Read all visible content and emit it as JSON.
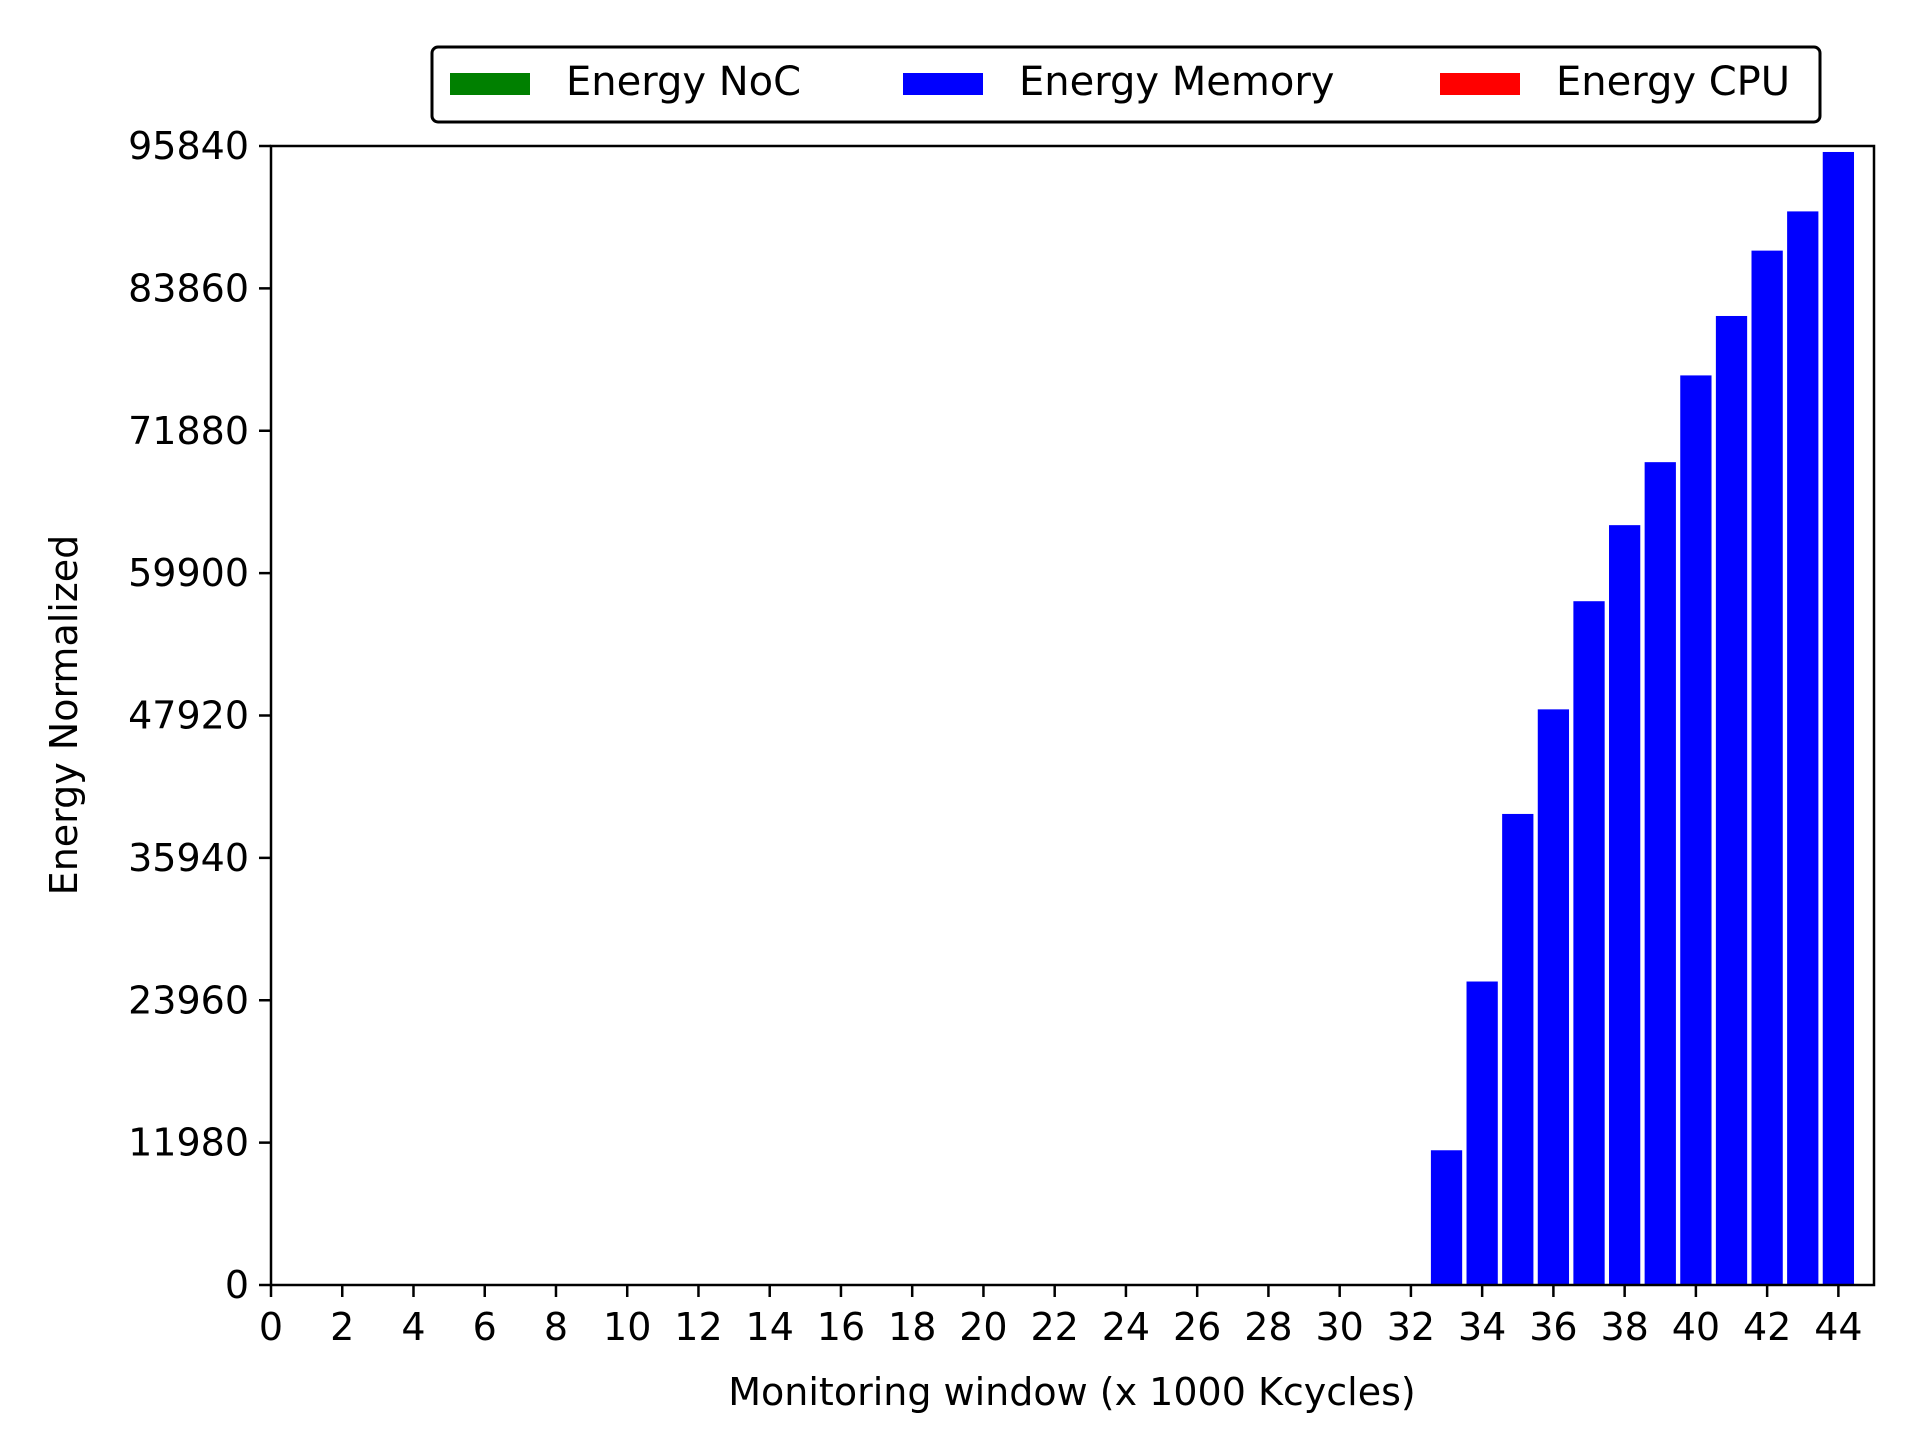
{
  "colors": {
    "noc": "#008000",
    "memory": "#0000ff",
    "cpu": "#ff0000",
    "axis": "#000000",
    "bar_edge": "#ffffff"
  },
  "legend": {
    "items": [
      {
        "label": "Energy NoC",
        "color": "#008000"
      },
      {
        "label": "Energy Memory",
        "color": "#0000ff"
      },
      {
        "label": "Energy CPU",
        "color": "#ff0000"
      }
    ],
    "placement": "top-center"
  },
  "chart_data": {
    "type": "bar",
    "stacked": true,
    "xlabel": "Monitoring window (x 1000 Kcycles)",
    "ylabel": "Energy Normalized",
    "xlim": [
      0,
      45
    ],
    "ylim": [
      0,
      95840
    ],
    "xticks": [
      0,
      2,
      4,
      6,
      8,
      10,
      12,
      14,
      16,
      18,
      20,
      22,
      24,
      26,
      28,
      30,
      32,
      34,
      36,
      38,
      40,
      42,
      44
    ],
    "yticks": [
      0,
      11980,
      23960,
      35940,
      47920,
      59900,
      71880,
      83860,
      95840
    ],
    "grid": false,
    "legend_position": "top-center",
    "x": [
      33,
      34,
      35,
      36,
      37,
      38,
      39,
      40,
      41,
      42,
      43,
      44
    ],
    "series": [
      {
        "name": "Energy NoC",
        "values": [
          0,
          0,
          0,
          0,
          0,
          0,
          0,
          0,
          0,
          0,
          0,
          0
        ]
      },
      {
        "name": "Energy Memory",
        "values": [
          11400,
          25600,
          39700,
          48500,
          57600,
          64000,
          69300,
          76600,
          81600,
          87100,
          90400,
          95400
        ]
      },
      {
        "name": "Energy CPU",
        "values": [
          0,
          0,
          0,
          0,
          0,
          0,
          0,
          0,
          0,
          0,
          0,
          0
        ]
      }
    ]
  }
}
